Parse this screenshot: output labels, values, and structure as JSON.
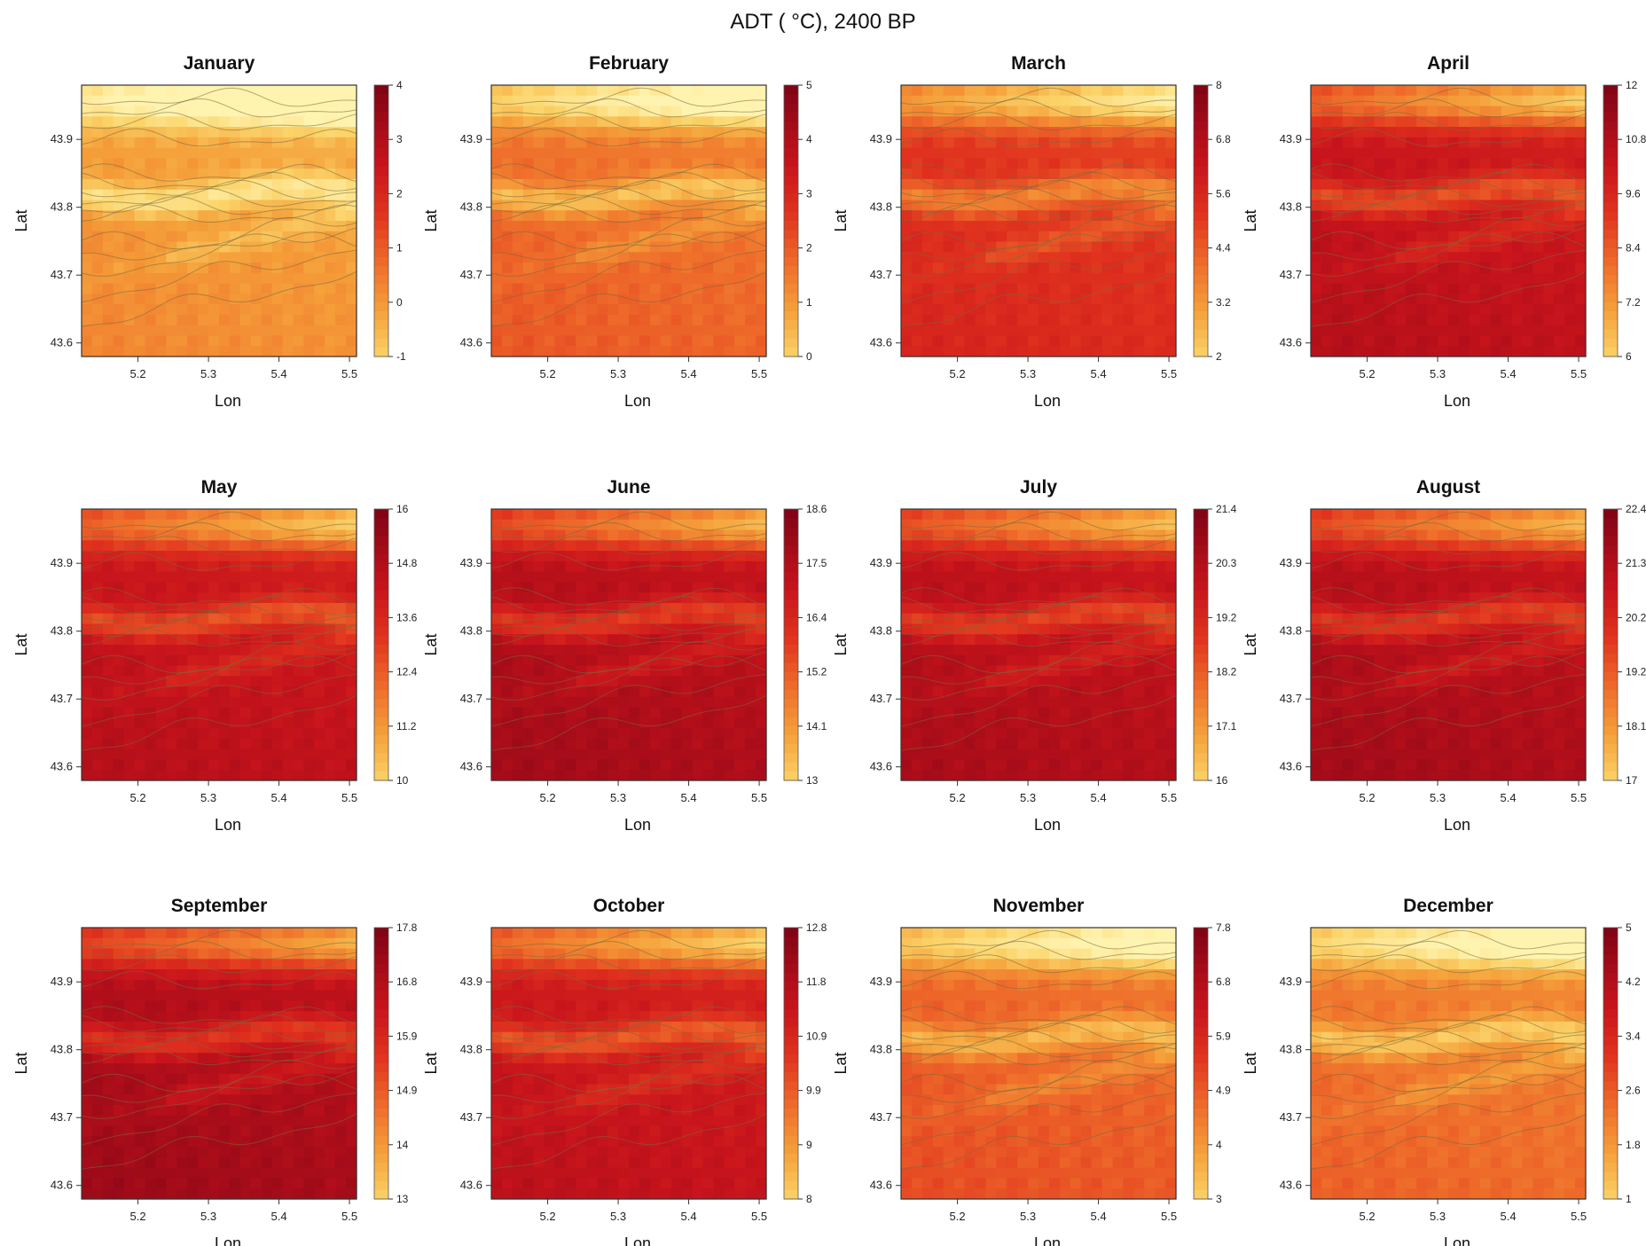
{
  "page": {
    "title": "ADT ( °C), 2400 BP"
  },
  "chart_data": {
    "type": "heatmap",
    "title": "ADT ( °C), 2400 BP",
    "xlabel": "Lon",
    "ylabel": "Lat",
    "x_ticks": [
      "5.2",
      "5.3",
      "5.4",
      "5.5"
    ],
    "y_ticks": [
      "43.6",
      "43.7",
      "43.8",
      "43.9"
    ],
    "xlim": [
      5.12,
      5.51
    ],
    "ylim": [
      43.58,
      43.98
    ],
    "colormap": [
      "#fff3b0",
      "#fbd46a",
      "#f5a03a",
      "#ee6a2a",
      "#e0321e",
      "#c8141c",
      "#9c0a18",
      "#6d0012"
    ],
    "panels": [
      {
        "month": "January",
        "colorbar_ticks": [
          "4",
          "3",
          "2",
          "1",
          "0",
          "-1"
        ],
        "range": [
          -1,
          4
        ]
      },
      {
        "month": "February",
        "colorbar_ticks": [
          "5",
          "4",
          "3",
          "2",
          "1",
          "0"
        ],
        "range": [
          0,
          5
        ]
      },
      {
        "month": "March",
        "colorbar_ticks": [
          "8",
          "6.8",
          "5.6",
          "4.4",
          "3.2",
          "2"
        ],
        "range": [
          2,
          8
        ]
      },
      {
        "month": "April",
        "colorbar_ticks": [
          "12",
          "10.8",
          "9.6",
          "8.4",
          "7.2",
          "6"
        ],
        "range": [
          6,
          12
        ]
      },
      {
        "month": "May",
        "colorbar_ticks": [
          "16",
          "14.8",
          "13.6",
          "12.4",
          "11.2",
          "10"
        ],
        "range": [
          10,
          16
        ]
      },
      {
        "month": "June",
        "colorbar_ticks": [
          "18.6",
          "17.5",
          "16.4",
          "15.2",
          "14.1",
          "13"
        ],
        "range": [
          13,
          18.6
        ]
      },
      {
        "month": "July",
        "colorbar_ticks": [
          "21.4",
          "20.3",
          "19.2",
          "18.2",
          "17.1",
          "16"
        ],
        "range": [
          16,
          21.4
        ]
      },
      {
        "month": "August",
        "colorbar_ticks": [
          "22.4",
          "21.3",
          "20.2",
          "19.2",
          "18.1",
          "17"
        ],
        "range": [
          17,
          22.4
        ]
      },
      {
        "month": "September",
        "colorbar_ticks": [
          "17.8",
          "16.8",
          "15.9",
          "14.9",
          "14",
          "13"
        ],
        "range": [
          13,
          17.8
        ]
      },
      {
        "month": "October",
        "colorbar_ticks": [
          "12.8",
          "11.8",
          "10.9",
          "9.9",
          "9",
          "8"
        ],
        "range": [
          8,
          12.8
        ]
      },
      {
        "month": "November",
        "colorbar_ticks": [
          "7.8",
          "6.8",
          "5.9",
          "4.9",
          "4",
          "3"
        ],
        "range": [
          3,
          7.8
        ]
      },
      {
        "month": "December",
        "colorbar_ticks": [
          "5",
          "4.2",
          "3.4",
          "2.6",
          "1.8",
          "1"
        ],
        "range": [
          1,
          5
        ]
      }
    ]
  }
}
